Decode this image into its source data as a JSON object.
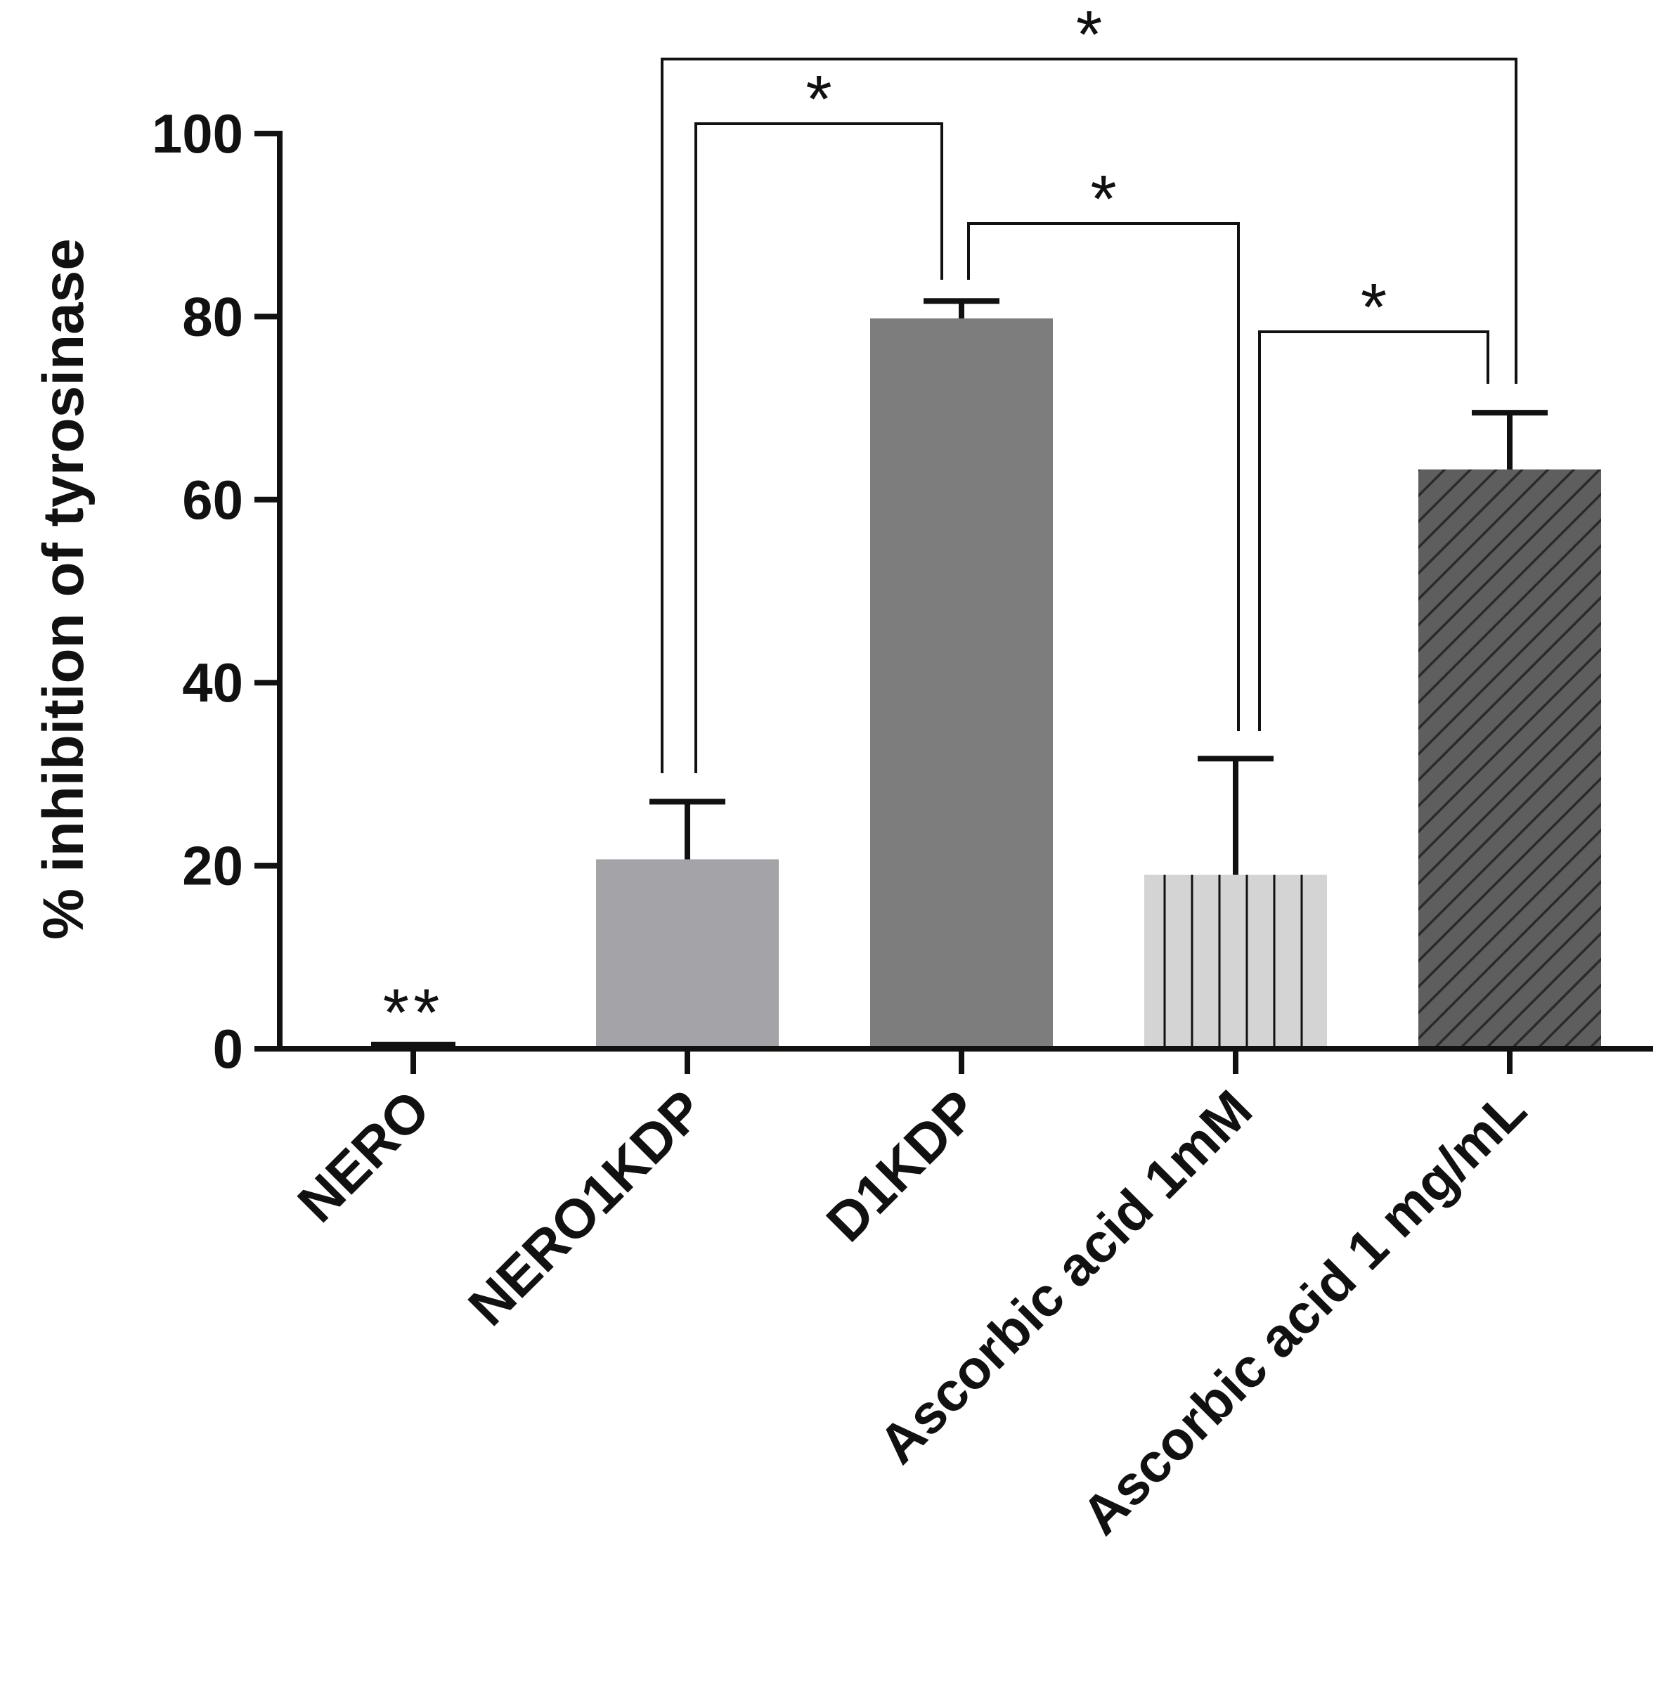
{
  "chart_data": {
    "type": "bar",
    "title": "",
    "xlabel": "",
    "ylabel": "% inhibition of tyrosinase",
    "ylim": [
      0,
      100
    ],
    "yticks": [
      0,
      20,
      40,
      60,
      80,
      100
    ],
    "grid": false,
    "categories": [
      "NERO",
      "NERO1KDP",
      "D1KDP",
      "Ascorbic acid 1mM",
      "Ascorbic acid 1 mg/mL"
    ],
    "values": [
      0.5,
      20.7,
      79.8,
      19.0,
      63.3
    ],
    "errors": [
      0.0,
      6.3,
      1.9,
      12.7,
      6.2
    ],
    "fills": [
      "#a3a3a8",
      "#a3a3a8",
      "#7d7d7d",
      "#d4d4d4",
      "#5e5e5e"
    ],
    "patterns": [
      "solid",
      "solid",
      "solid",
      "vertical-lines",
      "diagonal-hatch"
    ],
    "annotations": [
      {
        "category": "NERO",
        "text": "**"
      }
    ],
    "significance": [
      {
        "from": "NERO1KDP",
        "to": "D1KDP",
        "label": "*"
      },
      {
        "from": "NERO1KDP",
        "to": "Ascorbic acid 1 mg/mL",
        "label": "*"
      },
      {
        "from": "D1KDP",
        "to": "Ascorbic acid 1mM",
        "label": "*"
      },
      {
        "from": "Ascorbic acid 1mM",
        "to": "Ascorbic acid 1 mg/mL",
        "label": "*"
      }
    ]
  }
}
